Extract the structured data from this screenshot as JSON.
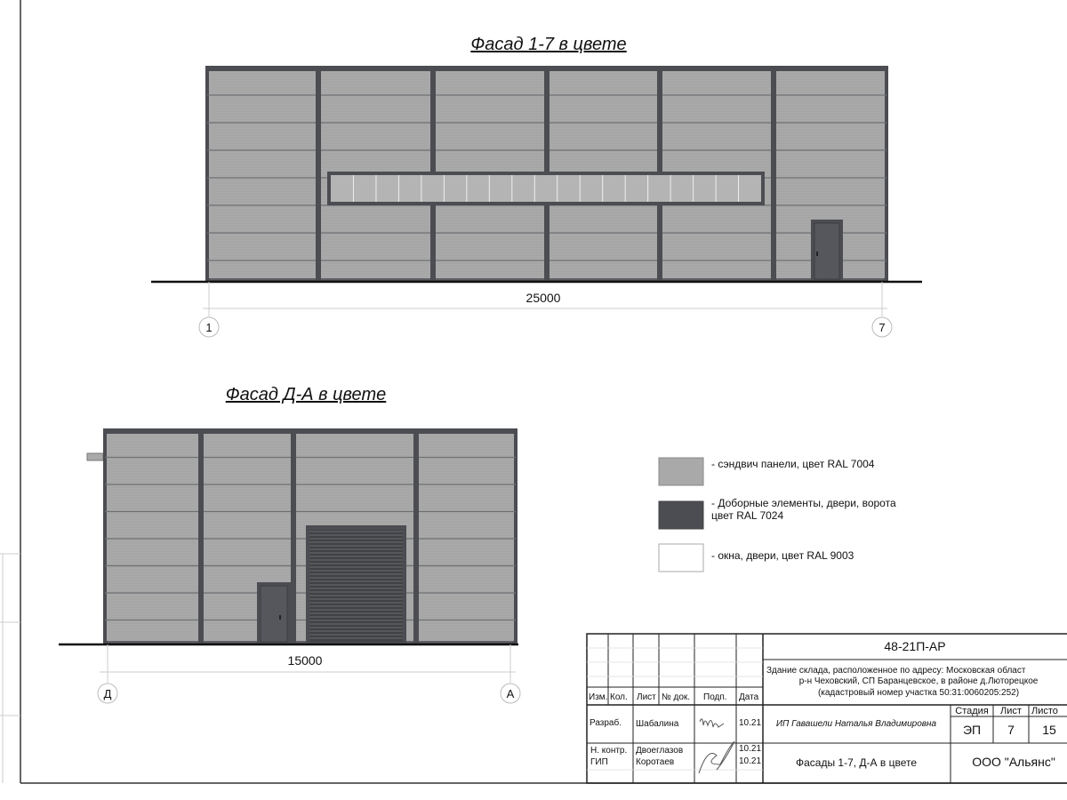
{
  "facade_top": {
    "title": "Фасад 1-7 в цвете",
    "dimension": "25000",
    "axis_left": "1",
    "axis_right": "7"
  },
  "facade_bottom": {
    "title": "Фасад Д-А в цвете",
    "dimension": "15000",
    "axis_left": "Д",
    "axis_right": "А"
  },
  "colors": {
    "panel": "#a9a9a9",
    "trim": "#4b4d52",
    "window": "#b4b4b4",
    "white": "#ffffff"
  },
  "legend": [
    {
      "label": "- сэндвич панели, цвет RAL 7004",
      "color": "#a9a9a9"
    },
    {
      "label": "- Доборные элементы, двери, ворота",
      "label2": "цвет RAL 7024",
      "color": "#4b4d52"
    },
    {
      "label": "- окна, двери, цвет RAL 9003",
      "color": "#ffffff"
    }
  ],
  "title_block": {
    "code": "48-21П-АР",
    "address_1": "Здание склада, расположенное по адресу: Московская област",
    "address_2": "р-н Чеховский, СП Баранцевское, в районе д.Люторецкое",
    "address_3": "(кадастровый номер участка 50:31:0060205:252)",
    "headers": [
      "Изм.",
      "Кол.",
      "Лист",
      "№ док.",
      "Подп.",
      "Дата"
    ],
    "rows": [
      {
        "role": "Разраб.",
        "name": "Шабалина",
        "date": "10.21"
      },
      {
        "role": "Н. контр.",
        "name": "Двоеглазов",
        "date": "10.21"
      },
      {
        "role": "ГИП",
        "name": "Коротаев",
        "date": "10.21"
      }
    ],
    "author": "ИП Гавашели Наталья Владимировна",
    "stage_label": "Стадия",
    "sheet_label": "Лист",
    "sheets_label": "Листо",
    "stage": "ЭП",
    "sheet": "7",
    "sheets": "15",
    "sheet_title": "Фасады 1-7, Д-А в цвете",
    "organization": "ООО \"Альянс\""
  }
}
